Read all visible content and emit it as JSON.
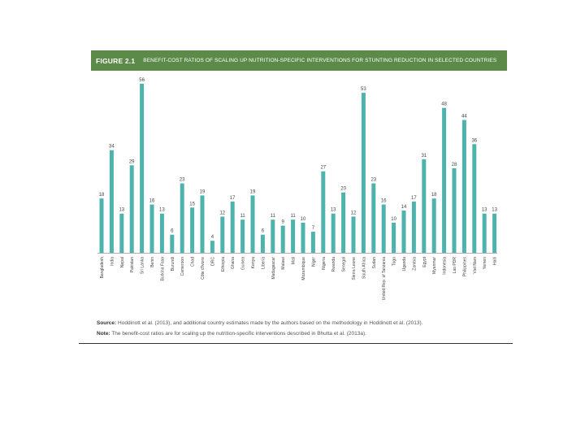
{
  "figure": {
    "label": "FIGURE 2.1",
    "title": "BENEFIT-COST RATIOS OF SCALING UP NUTRITION-SPECIFIC INTERVENTIONS FOR STUNTING REDUCTION IN SELECTED COUNTRIES"
  },
  "colors": {
    "header_bg": "#5c8a48",
    "bar": "#4fb3ad"
  },
  "chart_data": {
    "type": "bar",
    "title": "Benefit-cost ratios of scaling up nutrition-specific interventions for stunting reduction in selected countries",
    "xlabel": "",
    "ylabel": "",
    "ylim": [
      0,
      56
    ],
    "categories": [
      "Bangladesh",
      "India",
      "Nepal",
      "Pakistan",
      "Sri Lanka",
      "Benin",
      "Burkina Faso",
      "Burundi",
      "Cameroon",
      "Chad",
      "Côte d'Ivoire",
      "DRC",
      "Ethiopia",
      "Ghana",
      "Guinea",
      "Kenya",
      "Liberia",
      "Madagascar",
      "Malawi",
      "Mali",
      "Mozambique",
      "Niger",
      "Nigeria",
      "Rwanda",
      "Senegal",
      "Sierra Leone",
      "South Africa",
      "Sudan",
      "United Rep. of Tanzania",
      "Togo",
      "Uganda",
      "Zambia",
      "Egypt",
      "Myanmar",
      "Indonesia",
      "Lao PDR",
      "Philippines",
      "Viet Nam",
      "Yemen",
      "Haiti"
    ],
    "values": [
      18,
      34,
      13,
      29,
      56,
      16,
      13,
      6,
      23,
      15,
      19,
      4,
      12,
      17,
      11,
      19,
      6,
      11,
      9,
      11,
      10,
      7,
      27,
      13,
      20,
      12,
      53,
      23,
      16,
      10,
      14,
      17,
      31,
      18,
      48,
      28,
      44,
      36,
      13,
      13
    ]
  },
  "notes": {
    "source_label": "Source:",
    "source_text": "Hoddinott et al. (2013), and additional country estimates made by the authors based on the methodology in Hoddinott et al. (2013).",
    "note_label": "Note:",
    "note_text": "The benefit-cost ratios are for scaling up the nutrition-specific interventions described in Bhutta et al. (2013a)."
  }
}
